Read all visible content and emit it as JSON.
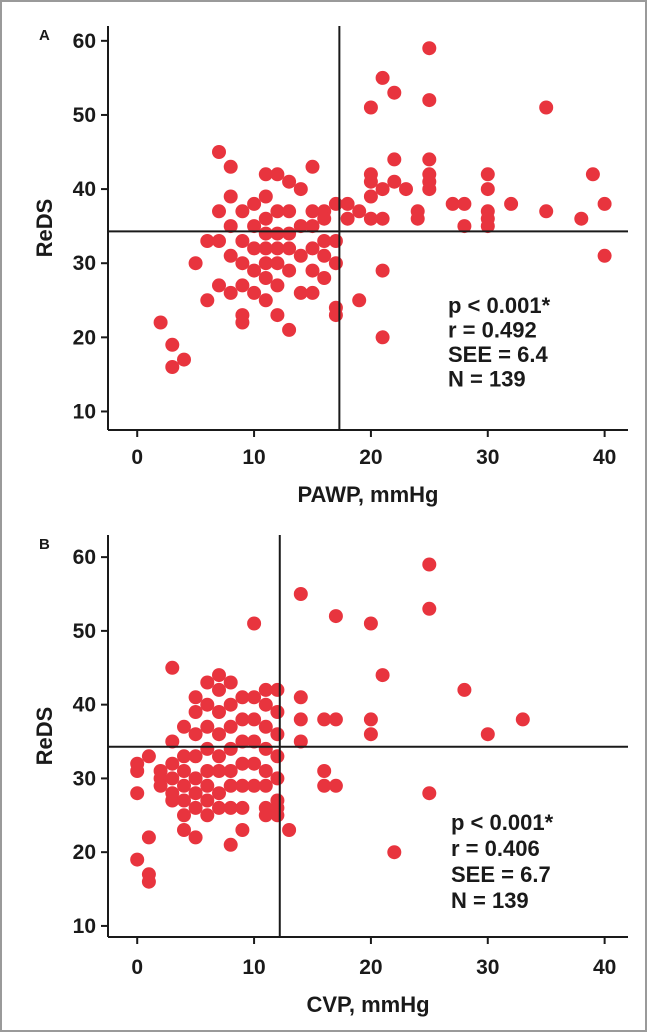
{
  "colors": {
    "point": "#e8343e",
    "axis": "#1a1a1a",
    "border": "#9a9a9a"
  },
  "chart_data": [
    {
      "type": "scatter",
      "panel_label": "A",
      "xlabel": "PAWP, mmHg",
      "ylabel": "ReDS",
      "xlim": [
        -2.5,
        42
      ],
      "ylim": [
        7.5,
        62
      ],
      "xticks": [
        0,
        10,
        20,
        30,
        40
      ],
      "yticks": [
        10,
        20,
        30,
        40,
        50,
        60
      ],
      "vline_x": 17.3,
      "hline_y": 34.3,
      "stats": [
        "p < 0.001*",
        "r = 0.492",
        "SEE = 6.4",
        "N = 139"
      ],
      "points": [
        [
          2,
          22
        ],
        [
          3,
          19
        ],
        [
          3,
          16
        ],
        [
          4,
          17
        ],
        [
          5,
          30
        ],
        [
          6,
          33
        ],
        [
          6,
          25
        ],
        [
          7,
          45
        ],
        [
          7,
          37
        ],
        [
          7,
          33
        ],
        [
          7,
          27
        ],
        [
          8,
          43
        ],
        [
          8,
          39
        ],
        [
          8,
          35
        ],
        [
          8,
          31
        ],
        [
          8,
          26
        ],
        [
          9,
          37
        ],
        [
          9,
          33
        ],
        [
          9,
          30
        ],
        [
          9,
          27
        ],
        [
          9,
          23
        ],
        [
          9,
          22
        ],
        [
          10,
          38
        ],
        [
          10,
          35
        ],
        [
          10,
          32
        ],
        [
          10,
          29
        ],
        [
          10,
          26
        ],
        [
          11,
          42
        ],
        [
          11,
          39
        ],
        [
          11,
          36
        ],
        [
          11,
          34
        ],
        [
          11,
          32
        ],
        [
          11,
          30
        ],
        [
          11,
          28
        ],
        [
          11,
          25
        ],
        [
          12,
          42
        ],
        [
          12,
          37
        ],
        [
          12,
          34
        ],
        [
          12,
          32
        ],
        [
          12,
          30
        ],
        [
          12,
          27
        ],
        [
          12,
          23
        ],
        [
          13,
          41
        ],
        [
          13,
          37
        ],
        [
          13,
          34
        ],
        [
          13,
          32
        ],
        [
          13,
          29
        ],
        [
          13,
          21
        ],
        [
          14,
          40
        ],
        [
          14,
          35
        ],
        [
          14,
          31
        ],
        [
          14,
          26
        ],
        [
          15,
          43
        ],
        [
          15,
          37
        ],
        [
          15,
          35
        ],
        [
          15,
          32
        ],
        [
          15,
          29
        ],
        [
          15,
          26
        ],
        [
          16,
          37
        ],
        [
          16,
          36
        ],
        [
          16,
          33
        ],
        [
          16,
          31
        ],
        [
          16,
          28
        ],
        [
          17,
          38
        ],
        [
          17,
          33
        ],
        [
          17,
          30
        ],
        [
          17,
          24
        ],
        [
          17,
          23
        ],
        [
          18,
          38
        ],
        [
          18,
          36
        ],
        [
          19,
          37
        ],
        [
          19,
          25
        ],
        [
          20,
          51
        ],
        [
          20,
          42
        ],
        [
          20,
          41
        ],
        [
          20,
          39
        ],
        [
          20,
          36
        ],
        [
          21,
          55
        ],
        [
          21,
          40
        ],
        [
          21,
          36
        ],
        [
          21,
          29
        ],
        [
          21,
          20
        ],
        [
          22,
          53
        ],
        [
          22,
          44
        ],
        [
          22,
          41
        ],
        [
          23,
          40
        ],
        [
          24,
          37
        ],
        [
          24,
          36
        ],
        [
          25,
          59
        ],
        [
          25,
          52
        ],
        [
          25,
          44
        ],
        [
          25,
          42
        ],
        [
          25,
          41
        ],
        [
          25,
          40
        ],
        [
          27,
          38
        ],
        [
          28,
          38
        ],
        [
          28,
          35
        ],
        [
          30,
          42
        ],
        [
          30,
          40
        ],
        [
          30,
          37
        ],
        [
          30,
          36
        ],
        [
          30,
          35
        ],
        [
          32,
          38
        ],
        [
          35,
          51
        ],
        [
          35,
          37
        ],
        [
          38,
          36
        ],
        [
          39,
          42
        ],
        [
          40,
          38
        ],
        [
          40,
          31
        ]
      ]
    },
    {
      "type": "scatter",
      "panel_label": "B",
      "xlabel": "CVP, mmHg",
      "ylabel": "ReDS",
      "xlim": [
        -2.5,
        42
      ],
      "ylim": [
        8.5,
        63
      ],
      "xticks": [
        0,
        10,
        20,
        30,
        40
      ],
      "yticks": [
        10,
        20,
        30,
        40,
        50,
        60
      ],
      "vline_x": 12.2,
      "hline_y": 34.3,
      "stats": [
        "p < 0.001*",
        "r = 0.406",
        "SEE = 6.7",
        "N = 139"
      ],
      "points": [
        [
          0,
          32
        ],
        [
          0,
          31
        ],
        [
          0,
          28
        ],
        [
          0,
          19
        ],
        [
          1,
          33
        ],
        [
          1,
          22
        ],
        [
          1,
          17
        ],
        [
          1,
          16
        ],
        [
          2,
          31
        ],
        [
          2,
          30
        ],
        [
          2,
          29
        ],
        [
          3,
          45
        ],
        [
          3,
          35
        ],
        [
          3,
          32
        ],
        [
          3,
          30
        ],
        [
          3,
          28
        ],
        [
          3,
          27
        ],
        [
          4,
          37
        ],
        [
          4,
          33
        ],
        [
          4,
          31
        ],
        [
          4,
          29
        ],
        [
          4,
          27
        ],
        [
          4,
          25
        ],
        [
          4,
          23
        ],
        [
          5,
          41
        ],
        [
          5,
          39
        ],
        [
          5,
          36
        ],
        [
          5,
          33
        ],
        [
          5,
          30
        ],
        [
          5,
          28
        ],
        [
          5,
          26
        ],
        [
          5,
          22
        ],
        [
          6,
          43
        ],
        [
          6,
          40
        ],
        [
          6,
          37
        ],
        [
          6,
          34
        ],
        [
          6,
          31
        ],
        [
          6,
          29
        ],
        [
          6,
          27
        ],
        [
          6,
          25
        ],
        [
          7,
          44
        ],
        [
          7,
          42
        ],
        [
          7,
          39
        ],
        [
          7,
          36
        ],
        [
          7,
          33
        ],
        [
          7,
          31
        ],
        [
          7,
          28
        ],
        [
          7,
          26
        ],
        [
          8,
          43
        ],
        [
          8,
          40
        ],
        [
          8,
          37
        ],
        [
          8,
          34
        ],
        [
          8,
          31
        ],
        [
          8,
          29
        ],
        [
          8,
          26
        ],
        [
          8,
          21
        ],
        [
          9,
          41
        ],
        [
          9,
          38
        ],
        [
          9,
          35
        ],
        [
          9,
          32
        ],
        [
          9,
          29
        ],
        [
          9,
          26
        ],
        [
          9,
          23
        ],
        [
          10,
          51
        ],
        [
          10,
          41
        ],
        [
          10,
          38
        ],
        [
          10,
          35
        ],
        [
          10,
          32
        ],
        [
          10,
          29
        ],
        [
          11,
          42
        ],
        [
          11,
          40
        ],
        [
          11,
          37
        ],
        [
          11,
          34
        ],
        [
          11,
          31
        ],
        [
          11,
          29
        ],
        [
          11,
          26
        ],
        [
          11,
          25
        ],
        [
          12,
          42
        ],
        [
          12,
          39
        ],
        [
          12,
          36
        ],
        [
          12,
          33
        ],
        [
          12,
          30
        ],
        [
          12,
          27
        ],
        [
          12,
          26
        ],
        [
          12,
          25
        ],
        [
          13,
          23
        ],
        [
          14,
          55
        ],
        [
          14,
          41
        ],
        [
          14,
          38
        ],
        [
          14,
          35
        ],
        [
          16,
          38
        ],
        [
          16,
          31
        ],
        [
          16,
          29
        ],
        [
          17,
          52
        ],
        [
          17,
          38
        ],
        [
          17,
          29
        ],
        [
          20,
          51
        ],
        [
          20,
          38
        ],
        [
          20,
          36
        ],
        [
          21,
          44
        ],
        [
          22,
          20
        ],
        [
          25,
          59
        ],
        [
          25,
          53
        ],
        [
          25,
          28
        ],
        [
          28,
          42
        ],
        [
          30,
          36
        ],
        [
          33,
          38
        ]
      ]
    }
  ]
}
